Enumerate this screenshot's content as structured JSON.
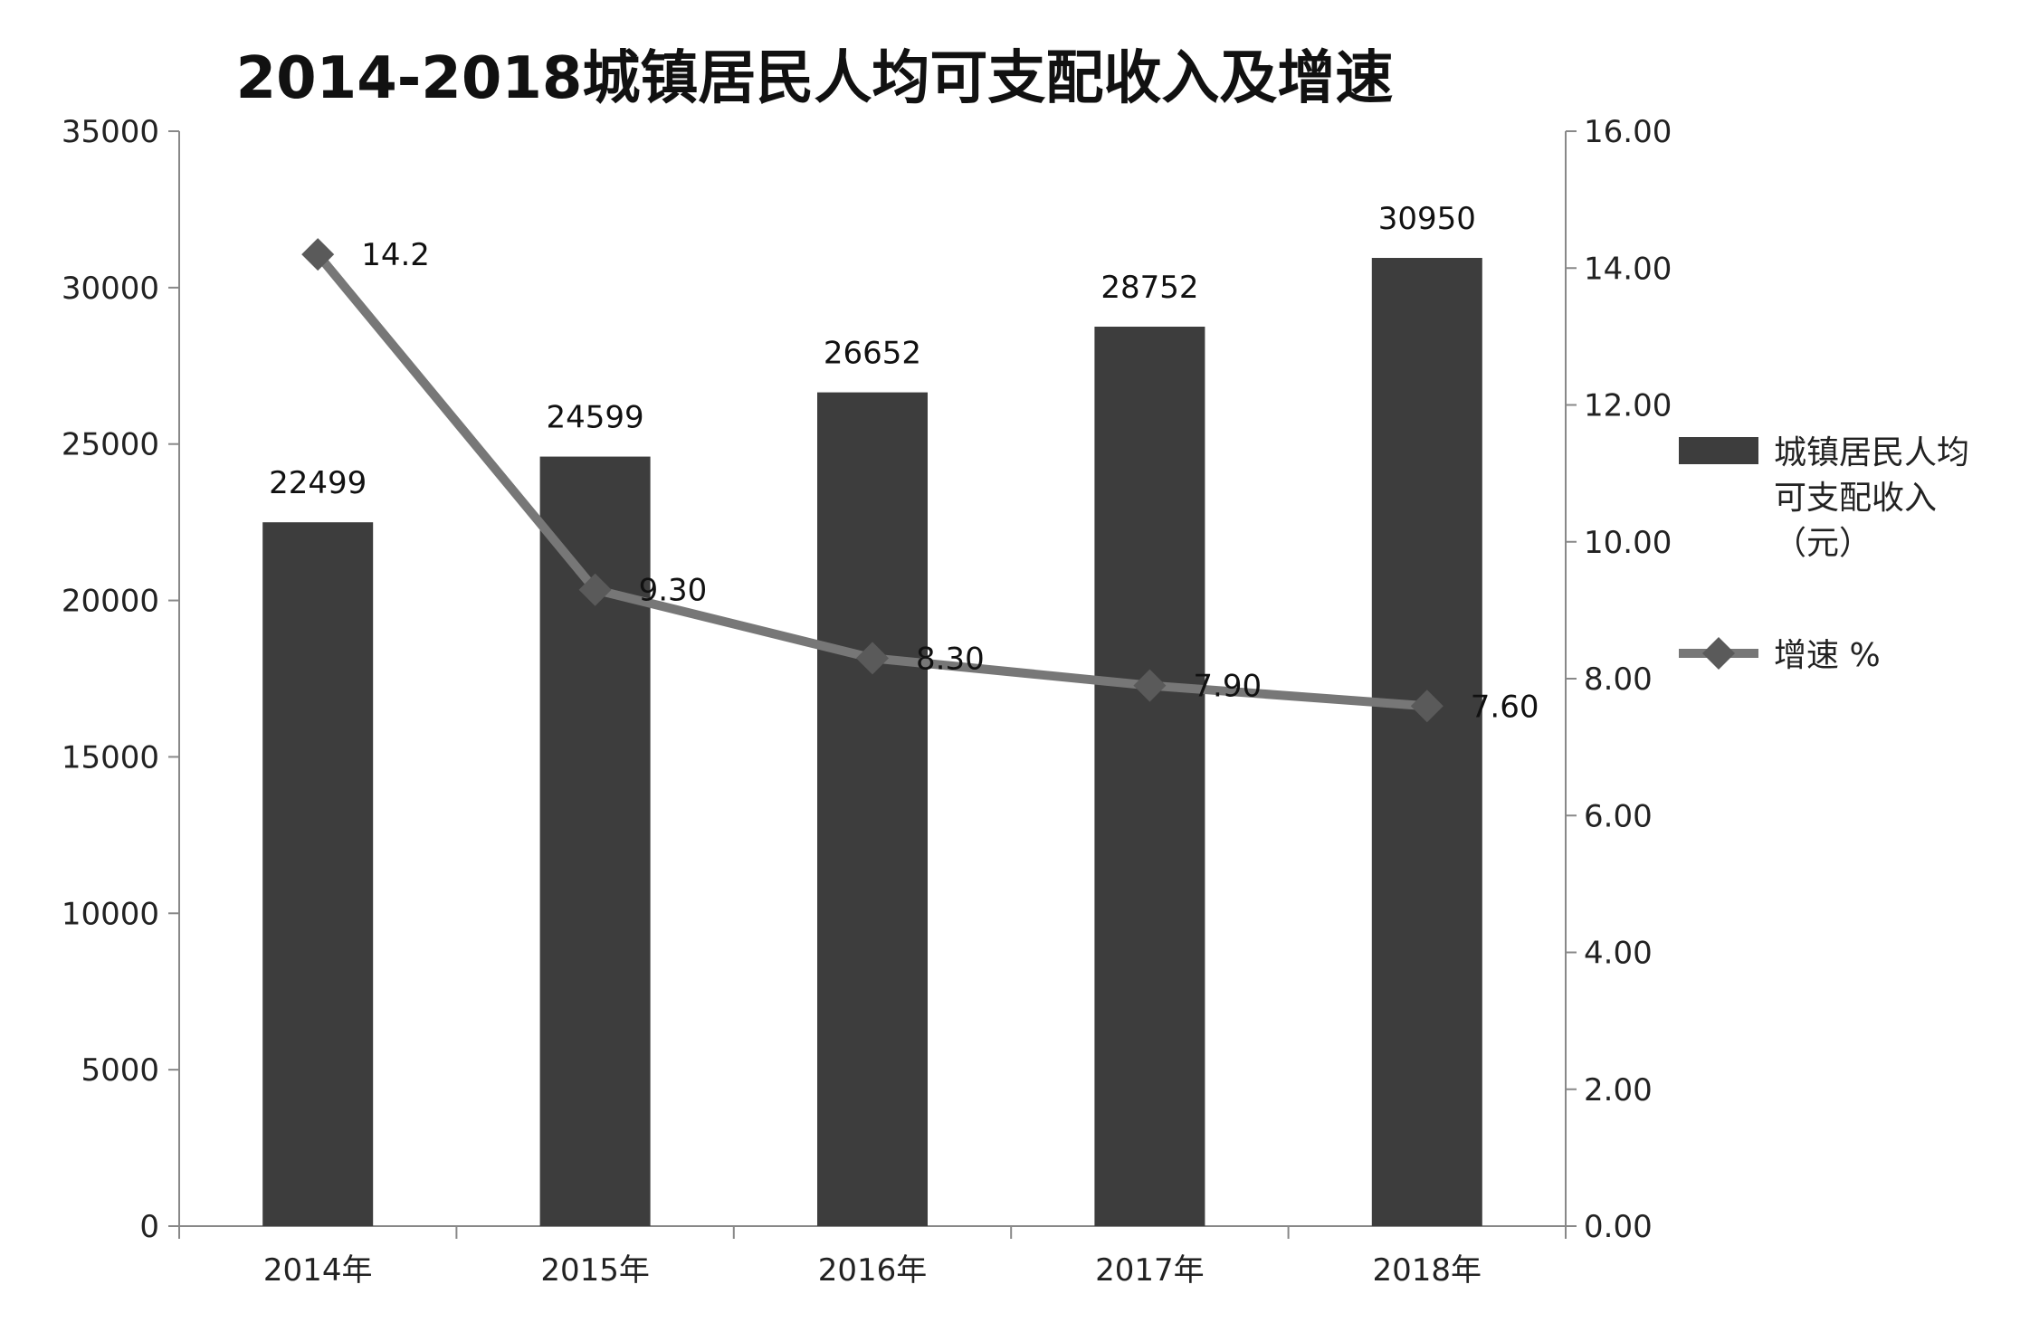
{
  "chart_data": {
    "type": "bar",
    "title": "2014-2018城镇居民人均可支配收入及增速",
    "categories": [
      "2014年",
      "2015年",
      "2016年",
      "2017年",
      "2018年"
    ],
    "ylim_left": [
      0,
      35000
    ],
    "yticks_left": [
      "0",
      "5000",
      "10000",
      "15000",
      "20000",
      "25000",
      "30000",
      "35000"
    ],
    "ylim_right": [
      0,
      16
    ],
    "yticks_right": [
      "0.00",
      "2.00",
      "4.00",
      "6.00",
      "8.00",
      "10.00",
      "12.00",
      "14.00",
      "16.00"
    ],
    "grid": false,
    "legend_position": "right",
    "series": [
      {
        "name": "城镇居民人均可支配收入（元）",
        "legend_lines": [
          "城镇居民人均",
          "可支配收入",
          "（元）"
        ],
        "type": "bar",
        "axis": "left",
        "color": "#3d3d3d",
        "values": [
          22499,
          24599,
          26652,
          28752,
          30950
        ],
        "labels": [
          "22499",
          "24599",
          "26652",
          "28752",
          "30950"
        ]
      },
      {
        "name": "增速 %",
        "legend_lines": [
          "增速 %"
        ],
        "type": "line",
        "axis": "right",
        "color": "#777777",
        "values": [
          14.2,
          9.3,
          8.3,
          7.9,
          7.6
        ],
        "labels": [
          "14.2",
          "9.30",
          "8.30",
          "7.90",
          "7.60"
        ]
      }
    ]
  }
}
